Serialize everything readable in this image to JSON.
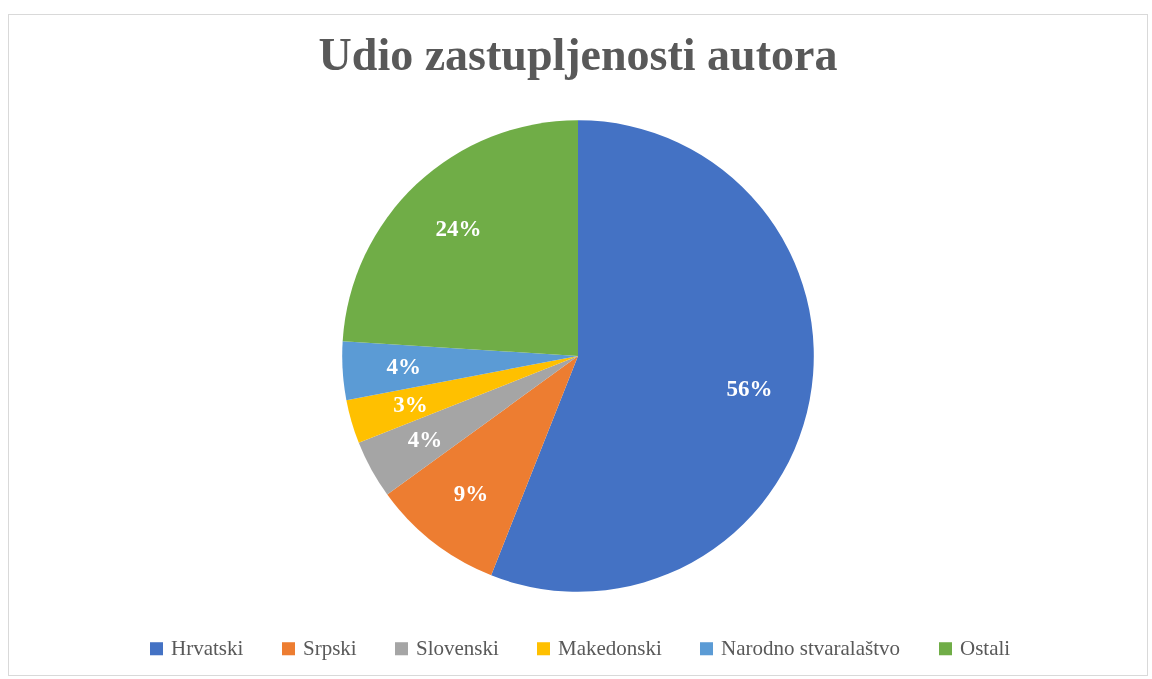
{
  "chart_data": {
    "type": "pie",
    "title": "Udio zastupljenosti autora",
    "categories": [
      "Hrvatski",
      "Srpski",
      "Slovenski",
      "Makedonski",
      "Narodno stvaralaštvo",
      "Ostali"
    ],
    "values": [
      56,
      9,
      4,
      3,
      4,
      24
    ],
    "colors": [
      "#4472c4",
      "#ed7d31",
      "#a5a5a5",
      "#ffc000",
      "#5b9bd5",
      "#70ad47"
    ],
    "value_labels": [
      "56%",
      "9%",
      "4%",
      "3%",
      "4%",
      "24%"
    ],
    "legend": "bottom"
  }
}
